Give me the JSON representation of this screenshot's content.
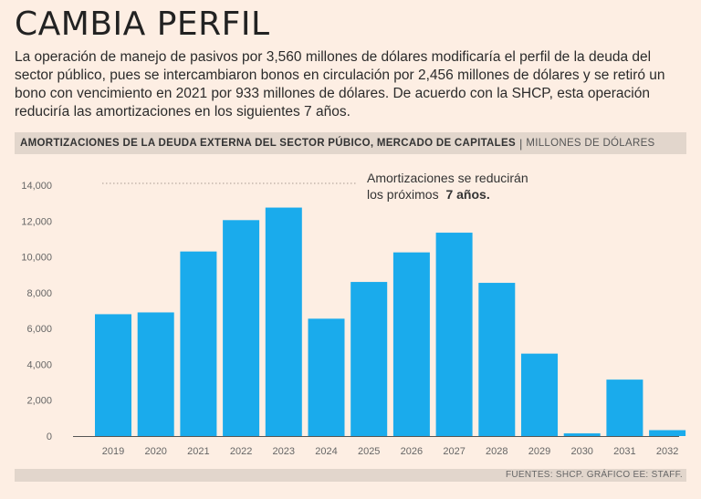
{
  "header": {
    "title": "CAMBIA PERFIL",
    "subtitle": "La operación de manejo de pasivos por 3,560 millones de dólares modificaría el perfil de la deuda del sector público, pues se intercambiaron bonos en circulación por 2,456 millones de dólares y se retiró un bono con vencimiento en 2021 por 933 millones de dólares. De acuerdo con la SHCP, esta operación reduciría las amortizaciones en los siguientes 7 años."
  },
  "banner": {
    "title": "AMORTIZACIONES DE LA DEUDA EXTERNA DEL SECTOR PÚBICO, MERCADO DE CAPITALES",
    "separator": "|",
    "unit": "MILLONES DE DÓLARES"
  },
  "footer": {
    "source": "FUENTES: SHCP. GRÁFICO EE: STAFF."
  },
  "chart_data": {
    "type": "bar",
    "categories": [
      "2019",
      "2020",
      "2021",
      "2022",
      "2023",
      "2024",
      "2025",
      "2026",
      "2027",
      "2028",
      "2029",
      "2030",
      "2031",
      "2032"
    ],
    "values": [
      6800,
      6900,
      10300,
      12050,
      12750,
      6550,
      8600,
      10250,
      11350,
      8550,
      4600,
      150,
      3150,
      330
    ],
    "ylim": [
      0,
      14000
    ],
    "yticks": [
      0,
      2000,
      4000,
      6000,
      8000,
      10000,
      12000,
      14000
    ],
    "ytick_labels": [
      "0",
      "2,000",
      "4,000",
      "6,000",
      "8,000",
      "10,000",
      "12,000",
      "14,000"
    ],
    "bar_color": "#1aabec",
    "annotation": {
      "line1": "Amortizaciones se reducirán",
      "line2_prefix": "los próximos",
      "line2_bold": "7 años."
    }
  }
}
